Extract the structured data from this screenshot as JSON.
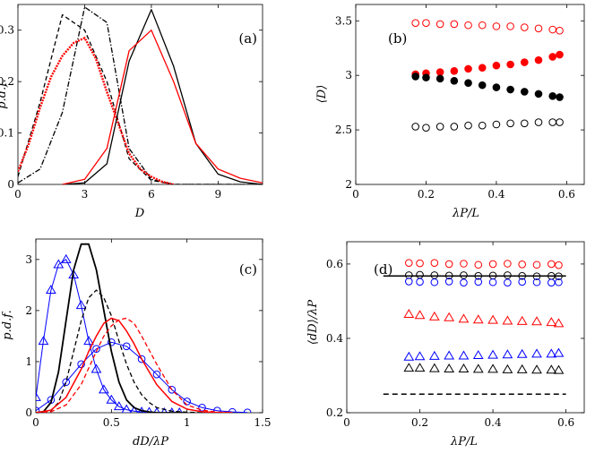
{
  "chart_data": [
    {
      "id": "a",
      "type": "line",
      "panel_label": "(a)",
      "xlabel": "D",
      "ylabel": "p.d.f.",
      "xlim": [
        0,
        11
      ],
      "ylim": [
        0,
        0.35
      ],
      "xticks": [
        0,
        3,
        6,
        9
      ],
      "xtick_labels": [
        "0",
        "3",
        "6",
        "9"
      ],
      "yticks": [
        0,
        0.1,
        0.2,
        0.3
      ],
      "ytick_labels": [
        "0",
        "0.1",
        "0.2",
        "0.3"
      ],
      "series": [
        {
          "name": "black-dashed",
          "color": "#000000",
          "dash": "5,3",
          "width": 1.3,
          "x": [
            0,
            1,
            2,
            3,
            4,
            5,
            6,
            7,
            8,
            9,
            10,
            11
          ],
          "values": [
            0.015,
            0.16,
            0.33,
            0.3,
            0.2,
            0.05,
            0.008,
            0,
            0,
            0,
            0,
            0
          ]
        },
        {
          "name": "black-dashdot",
          "color": "#000000",
          "dash": "6,2,1.5,2",
          "width": 1.3,
          "x": [
            0,
            1,
            2,
            3,
            4,
            5,
            6,
            7,
            8,
            9,
            10,
            11
          ],
          "values": [
            0.003,
            0.03,
            0.14,
            0.345,
            0.315,
            0.07,
            0.01,
            0,
            0,
            0,
            0,
            0
          ]
        },
        {
          "name": "red-dense-dashed",
          "color": "#ff0000",
          "dash": "2,1.2",
          "width": 2.4,
          "x": [
            0,
            0.5,
            1,
            1.5,
            2,
            2.5,
            3,
            3.5,
            4,
            4.5,
            5,
            5.5,
            6,
            6.5,
            7
          ],
          "values": [
            0.025,
            0.08,
            0.15,
            0.21,
            0.25,
            0.275,
            0.285,
            0.245,
            0.18,
            0.12,
            0.06,
            0.03,
            0.015,
            0.005,
            0
          ]
        },
        {
          "name": "black-solid",
          "color": "#000000",
          "dash": "",
          "width": 1.3,
          "x": [
            2,
            3,
            4,
            5,
            6,
            7,
            8,
            9,
            10,
            11
          ],
          "values": [
            0,
            0.003,
            0.04,
            0.24,
            0.34,
            0.23,
            0.08,
            0.02,
            0.005,
            0
          ]
        },
        {
          "name": "red-solid",
          "color": "#ff0000",
          "dash": "",
          "width": 1.3,
          "x": [
            2,
            3,
            4,
            5,
            6,
            7,
            8,
            9,
            10,
            11
          ],
          "values": [
            0,
            0.01,
            0.07,
            0.26,
            0.3,
            0.2,
            0.08,
            0.03,
            0.012,
            0.003
          ]
        }
      ]
    },
    {
      "id": "b",
      "type": "scatter",
      "panel_label": "(b)",
      "xlabel": "λP/L",
      "ylabel": "⟨D⟩",
      "xlim": [
        0,
        0.65
      ],
      "ylim": [
        2,
        3.65
      ],
      "xticks": [
        0,
        0.2,
        0.4,
        0.6
      ],
      "xtick_labels": [
        "0",
        "0.2",
        "0.4",
        "0.6"
      ],
      "yticks": [
        2,
        2.5,
        3,
        3.5
      ],
      "ytick_labels": [
        "2",
        "2.5",
        "3",
        "3.5"
      ],
      "series": [
        {
          "name": "red-open-top",
          "color": "#ff0000",
          "filled": false,
          "x": [
            0.17,
            0.2,
            0.24,
            0.28,
            0.32,
            0.36,
            0.4,
            0.44,
            0.48,
            0.52,
            0.56,
            0.58
          ],
          "values": [
            3.48,
            3.48,
            3.47,
            3.47,
            3.46,
            3.46,
            3.45,
            3.45,
            3.44,
            3.43,
            3.42,
            3.41
          ]
        },
        {
          "name": "red-filled",
          "color": "#ff0000",
          "filled": true,
          "x": [
            0.17,
            0.2,
            0.24,
            0.28,
            0.32,
            0.36,
            0.4,
            0.44,
            0.48,
            0.52,
            0.56,
            0.58
          ],
          "values": [
            3.01,
            3.02,
            3.03,
            3.04,
            3.06,
            3.07,
            3.09,
            3.1,
            3.12,
            3.14,
            3.17,
            3.19
          ]
        },
        {
          "name": "black-filled",
          "color": "#000000",
          "filled": true,
          "x": [
            0.17,
            0.2,
            0.24,
            0.28,
            0.32,
            0.36,
            0.4,
            0.44,
            0.48,
            0.52,
            0.56,
            0.58
          ],
          "values": [
            2.99,
            2.98,
            2.97,
            2.95,
            2.93,
            2.91,
            2.89,
            2.87,
            2.85,
            2.83,
            2.81,
            2.8
          ]
        },
        {
          "name": "black-open-bottom",
          "color": "#000000",
          "filled": false,
          "x": [
            0.17,
            0.2,
            0.24,
            0.28,
            0.32,
            0.36,
            0.4,
            0.44,
            0.48,
            0.52,
            0.56,
            0.58
          ],
          "values": [
            2.53,
            2.52,
            2.53,
            2.53,
            2.54,
            2.54,
            2.55,
            2.56,
            2.56,
            2.57,
            2.57,
            2.57
          ]
        }
      ]
    },
    {
      "id": "c",
      "type": "line",
      "panel_label": "(c)",
      "xlabel": "dD/λP",
      "ylabel": "p.d.f.",
      "xlim": [
        0,
        1.5
      ],
      "ylim": [
        0,
        3.4
      ],
      "xticks": [
        0,
        0.5,
        1,
        1.5
      ],
      "xtick_labels": [
        "0",
        "0.5",
        "1",
        "1.5"
      ],
      "yticks": [
        0,
        1,
        2,
        3
      ],
      "ytick_labels": [
        "0",
        "1",
        "2",
        "3"
      ],
      "series": [
        {
          "name": "blue-triangles",
          "color": "#0000ff",
          "dash": "",
          "width": 1,
          "marker": "triangle",
          "x": [
            0,
            0.05,
            0.1,
            0.15,
            0.2,
            0.25,
            0.3,
            0.35,
            0.4,
            0.45,
            0.5,
            0.55,
            0.6,
            0.65,
            0.7,
            0.75,
            0.8,
            0.85,
            0.9,
            0.95
          ],
          "values": [
            0.3,
            1.4,
            2.4,
            2.9,
            3.0,
            2.7,
            2.1,
            1.4,
            0.85,
            0.45,
            0.25,
            0.12,
            0.06,
            0.03,
            0.015,
            0.01,
            0,
            0,
            0,
            0
          ]
        },
        {
          "name": "blue-circles",
          "color": "#0000ff",
          "dash": "",
          "width": 1,
          "marker": "circle",
          "x": [
            0,
            0.1,
            0.2,
            0.3,
            0.4,
            0.5,
            0.6,
            0.7,
            0.8,
            0.9,
            1.0,
            1.1,
            1.2,
            1.3,
            1.4
          ],
          "values": [
            0.04,
            0.25,
            0.6,
            0.95,
            1.25,
            1.38,
            1.3,
            1.05,
            0.75,
            0.45,
            0.22,
            0.1,
            0.04,
            0.015,
            0.005
          ]
        },
        {
          "name": "black-solid",
          "color": "#000000",
          "dash": "",
          "width": 1.8,
          "x": [
            0,
            0.05,
            0.1,
            0.15,
            0.2,
            0.25,
            0.3,
            0.35,
            0.4,
            0.45,
            0.5,
            0.55,
            0.6,
            0.65,
            0.7,
            0.75,
            0.8,
            0.9,
            1.0
          ],
          "values": [
            0,
            0.02,
            0.2,
            0.8,
            1.8,
            2.8,
            3.3,
            3.3,
            2.8,
            2.0,
            1.2,
            0.6,
            0.25,
            0.1,
            0.04,
            0.015,
            0,
            0,
            0
          ]
        },
        {
          "name": "black-dashed",
          "color": "#000000",
          "dash": "5,3",
          "width": 1.3,
          "x": [
            0,
            0.1,
            0.15,
            0.2,
            0.25,
            0.3,
            0.35,
            0.4,
            0.45,
            0.5,
            0.55,
            0.6,
            0.65,
            0.7,
            0.75,
            0.8,
            0.9,
            1.0,
            1.1
          ],
          "values": [
            0,
            0.04,
            0.2,
            0.6,
            1.2,
            1.8,
            2.25,
            2.4,
            2.25,
            1.9,
            1.4,
            0.95,
            0.6,
            0.35,
            0.2,
            0.1,
            0.03,
            0.01,
            0
          ]
        },
        {
          "name": "red-solid",
          "color": "#ff0000",
          "dash": "",
          "width": 1.5,
          "x": [
            0,
            0.1,
            0.2,
            0.3,
            0.35,
            0.4,
            0.45,
            0.5,
            0.55,
            0.6,
            0.65,
            0.7,
            0.8,
            0.9,
            1.0,
            1.1,
            1.2,
            1.3
          ],
          "values": [
            0,
            0.05,
            0.3,
            0.85,
            1.2,
            1.5,
            1.75,
            1.85,
            1.8,
            1.6,
            1.35,
            1.05,
            0.55,
            0.22,
            0.07,
            0.02,
            0.005,
            0
          ]
        },
        {
          "name": "red-dashed",
          "color": "#ff0000",
          "dash": "5,3",
          "width": 1.3,
          "x": [
            0,
            0.1,
            0.2,
            0.3,
            0.4,
            0.45,
            0.5,
            0.55,
            0.6,
            0.65,
            0.7,
            0.8,
            0.9,
            1.0,
            1.1,
            1.2,
            1.3
          ],
          "values": [
            0,
            0.02,
            0.15,
            0.55,
            1.2,
            1.5,
            1.7,
            1.82,
            1.85,
            1.75,
            1.5,
            0.95,
            0.45,
            0.15,
            0.05,
            0.01,
            0
          ]
        }
      ]
    },
    {
      "id": "d",
      "type": "scatter",
      "panel_label": "(d)",
      "xlabel": "λP/L",
      "ylabel": "⟨dD⟩/λP",
      "xlim": [
        0,
        0.65
      ],
      "ylim": [
        0.2,
        0.66
      ],
      "xticks": [
        0,
        0.2,
        0.4,
        0.6
      ],
      "xtick_labels": [
        "0",
        "0.2",
        "0.4",
        "0.6"
      ],
      "yticks": [
        0.2,
        0.4,
        0.6
      ],
      "ytick_labels": [
        "0.2",
        "0.4",
        "0.6"
      ],
      "hlines": [
        {
          "y": 0.568,
          "x": [
            0.1,
            0.6
          ],
          "color": "#000000",
          "dash": "",
          "width": 1.5
        },
        {
          "y": 0.25,
          "x": [
            0.1,
            0.6
          ],
          "color": "#000000",
          "dash": "6,4",
          "width": 1.5
        }
      ],
      "series": [
        {
          "name": "red-circles",
          "color": "#ff0000",
          "marker": "circle",
          "x": [
            0.17,
            0.2,
            0.24,
            0.28,
            0.32,
            0.36,
            0.4,
            0.44,
            0.48,
            0.52,
            0.56,
            0.58
          ],
          "values": [
            0.603,
            0.602,
            0.603,
            0.6,
            0.601,
            0.598,
            0.6,
            0.601,
            0.599,
            0.598,
            0.6,
            0.597
          ]
        },
        {
          "name": "black-circles",
          "color": "#000000",
          "marker": "circle",
          "x": [
            0.17,
            0.2,
            0.24,
            0.28,
            0.32,
            0.36,
            0.4,
            0.44,
            0.48,
            0.52,
            0.56,
            0.58
          ],
          "values": [
            0.57,
            0.571,
            0.57,
            0.569,
            0.57,
            0.568,
            0.569,
            0.57,
            0.568,
            0.567,
            0.568,
            0.567
          ]
        },
        {
          "name": "blue-circles",
          "color": "#0000ff",
          "marker": "circle",
          "x": [
            0.17,
            0.2,
            0.24,
            0.28,
            0.32,
            0.36,
            0.4,
            0.44,
            0.48,
            0.52,
            0.56,
            0.58
          ],
          "values": [
            0.553,
            0.552,
            0.551,
            0.553,
            0.55,
            0.552,
            0.551,
            0.55,
            0.552,
            0.551,
            0.55,
            0.551
          ]
        },
        {
          "name": "red-triangles",
          "color": "#ff0000",
          "marker": "triangle",
          "x": [
            0.17,
            0.2,
            0.24,
            0.28,
            0.32,
            0.36,
            0.4,
            0.44,
            0.48,
            0.52,
            0.56,
            0.58
          ],
          "values": [
            0.465,
            0.462,
            0.458,
            0.456,
            0.452,
            0.45,
            0.449,
            0.447,
            0.446,
            0.445,
            0.443,
            0.44
          ]
        },
        {
          "name": "blue-triangles",
          "color": "#0000ff",
          "marker": "triangle",
          "x": [
            0.17,
            0.2,
            0.24,
            0.28,
            0.32,
            0.36,
            0.4,
            0.44,
            0.48,
            0.52,
            0.56,
            0.58
          ],
          "values": [
            0.35,
            0.351,
            0.352,
            0.353,
            0.353,
            0.354,
            0.355,
            0.356,
            0.357,
            0.358,
            0.358,
            0.36
          ]
        },
        {
          "name": "black-triangles",
          "color": "#000000",
          "marker": "triangle",
          "x": [
            0.17,
            0.2,
            0.24,
            0.28,
            0.32,
            0.36,
            0.4,
            0.44,
            0.48,
            0.52,
            0.56,
            0.58
          ],
          "values": [
            0.32,
            0.32,
            0.319,
            0.318,
            0.318,
            0.317,
            0.317,
            0.316,
            0.316,
            0.315,
            0.315,
            0.314
          ]
        }
      ]
    }
  ]
}
